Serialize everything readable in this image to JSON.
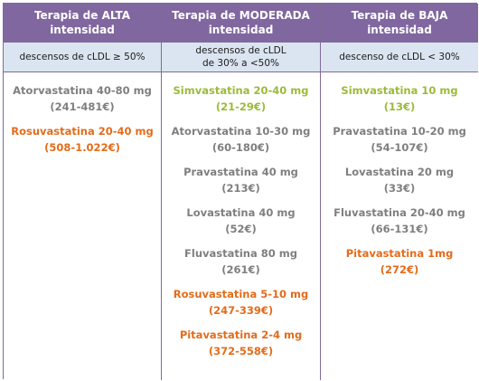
{
  "columns": [
    {
      "header": [
        "Terapia de ALTA",
        "intensidad"
      ],
      "subheader": [
        "descensos de cLDL ≥ 50%"
      ],
      "drugs": [
        {
          "name": "Atorvastatina 40-80 mg",
          "price": "(241-481€)",
          "color": "gray"
        },
        {
          "name": "Rosuvastatina 20-40 mg",
          "price": "(508-1.022€)",
          "color": "orange"
        }
      ]
    },
    {
      "header": [
        "Terapia de MODERADA",
        "intensidad"
      ],
      "subheader": [
        "descensos de cLDL",
        "de 30% a <50%"
      ],
      "drugs": [
        {
          "name": "Simvastatina 20-40 mg",
          "price": "(21-29€)",
          "color": "green"
        },
        {
          "name": "Atorvastatina 10-30 mg",
          "price": "(60-180€)",
          "color": "gray"
        },
        {
          "name": "Pravastatina 40 mg",
          "price": "(213€)",
          "color": "gray"
        },
        {
          "name": "Lovastatina 40 mg",
          "price": "(52€)",
          "color": "gray"
        },
        {
          "name": "Fluvastatina 80 mg",
          "price": "(261€)",
          "color": "gray"
        },
        {
          "name": "Rosuvastatina 5-10 mg",
          "price": "(247-339€)",
          "color": "orange"
        },
        {
          "name": "Pitavastatina 2-4 mg",
          "price": "(372-558€)",
          "color": "orange"
        }
      ]
    },
    {
      "header": [
        "Terapia de BAJA intensidad"
      ],
      "subheader": [
        "descenso de cLDL < 30%"
      ],
      "drugs": [
        {
          "name": "Simvastatina 10 mg",
          "price": "(13€)",
          "color": "green"
        },
        {
          "name": "Pravastatina 10-20 mg",
          "price": "(54-107€)",
          "color": "gray"
        },
        {
          "name": "Lovastatina 20 mg",
          "price": "(33€)",
          "color": "gray"
        },
        {
          "name": "Fluvastatina 20-40 mg",
          "price": "(66-131€)",
          "color": "gray"
        },
        {
          "name": "Pitavastatina 1mg",
          "price": "(272€)",
          "color": "orange"
        }
      ]
    }
  ],
  "colors": {
    "header_bg": "#8067a0",
    "subheader_bg": "#dbe5f1",
    "border": "#7f6a98",
    "gray": "#7f7f7f",
    "green": "#9bbb3a",
    "orange": "#e36c1a"
  }
}
